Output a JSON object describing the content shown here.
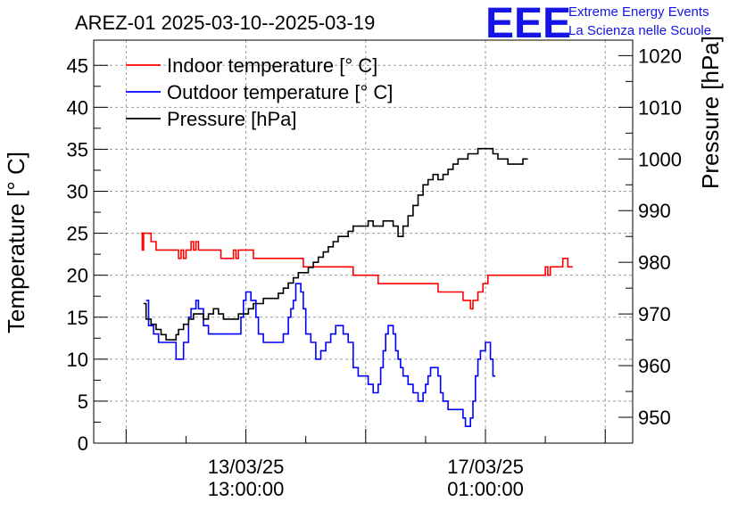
{
  "chart_data": {
    "type": "line",
    "title": "AREZ-01 2025-03-10--2025-03-19",
    "logo": "EEE",
    "organization": [
      "Extreme Energy Events",
      "La Scienza nelle Scuole"
    ],
    "ylabel": "Temperature [° C]",
    "ylabel_right": "Pressure [hPa]",
    "x_unit": "hours since 2025-03-10 00:00",
    "xlim": [
      0,
      216
    ],
    "ylim": [
      0,
      48
    ],
    "ylim_right": [
      945,
      1023
    ],
    "yticks": [
      0,
      5,
      10,
      15,
      20,
      25,
      30,
      35,
      40,
      45
    ],
    "yticks_right": [
      950,
      960,
      970,
      980,
      990,
      1000,
      1010,
      1020
    ],
    "xticks": [
      {
        "x": 61,
        "line1": "13/03/25",
        "line2": "13:00:00"
      },
      {
        "x": 157,
        "line1": "17/03/25",
        "line2": "01:00:00"
      }
    ],
    "grid": true,
    "legend_position": "top-left",
    "series": [
      {
        "name": "Indoor temperature [° C]",
        "axis": "left",
        "color": "#ff0000",
        "points": [
          [
            19,
            25
          ],
          [
            19.5,
            23
          ],
          [
            20,
            25
          ],
          [
            22,
            25
          ],
          [
            23,
            24
          ],
          [
            24,
            24
          ],
          [
            25,
            23
          ],
          [
            30,
            23
          ],
          [
            33,
            23
          ],
          [
            34,
            22
          ],
          [
            35,
            23
          ],
          [
            36,
            22
          ],
          [
            37,
            23
          ],
          [
            38,
            23
          ],
          [
            39,
            24
          ],
          [
            40,
            23
          ],
          [
            41,
            24
          ],
          [
            42,
            23
          ],
          [
            50,
            23
          ],
          [
            51,
            22
          ],
          [
            55,
            22
          ],
          [
            56,
            23
          ],
          [
            57,
            22
          ],
          [
            58,
            23
          ],
          [
            63,
            23
          ],
          [
            64,
            22
          ],
          [
            82,
            22
          ],
          [
            84,
            21
          ],
          [
            98,
            21
          ],
          [
            104,
            20
          ],
          [
            112,
            20
          ],
          [
            114,
            19
          ],
          [
            136,
            19
          ],
          [
            138,
            18
          ],
          [
            146,
            18
          ],
          [
            148,
            17
          ],
          [
            150,
            17
          ],
          [
            151,
            16
          ],
          [
            152,
            17
          ],
          [
            154,
            18
          ],
          [
            156,
            19
          ],
          [
            158,
            20
          ],
          [
            172,
            20
          ],
          [
            174,
            20
          ],
          [
            176,
            20
          ],
          [
            178,
            20
          ],
          [
            180,
            20
          ],
          [
            181,
            21
          ],
          [
            182,
            20
          ],
          [
            183,
            21
          ],
          [
            186,
            21
          ],
          [
            188,
            22
          ],
          [
            190,
            21
          ],
          [
            192,
            21
          ]
        ]
      },
      {
        "name": "Outdoor temperature [° C]",
        "axis": "left",
        "color": "#0000ff",
        "points": [
          [
            21,
            17
          ],
          [
            22,
            14
          ],
          [
            24,
            13
          ],
          [
            26,
            12
          ],
          [
            29,
            12
          ],
          [
            32,
            12
          ],
          [
            33,
            10
          ],
          [
            35,
            10
          ],
          [
            36,
            12
          ],
          [
            38,
            15
          ],
          [
            39,
            16
          ],
          [
            41,
            17
          ],
          [
            42,
            16
          ],
          [
            44,
            14
          ],
          [
            46,
            13
          ],
          [
            48,
            13
          ],
          [
            51,
            13
          ],
          [
            54,
            13
          ],
          [
            57,
            13
          ],
          [
            59,
            15
          ],
          [
            60,
            17
          ],
          [
            61,
            18
          ],
          [
            62,
            18
          ],
          [
            63,
            17
          ],
          [
            65,
            15
          ],
          [
            66,
            13
          ],
          [
            68,
            12
          ],
          [
            70,
            12
          ],
          [
            72,
            12
          ],
          [
            74,
            12
          ],
          [
            76,
            13
          ],
          [
            78,
            15
          ],
          [
            79,
            16
          ],
          [
            80,
            17
          ],
          [
            81,
            19
          ],
          [
            82,
            19
          ],
          [
            83,
            18
          ],
          [
            84,
            16
          ],
          [
            85,
            13
          ],
          [
            87,
            12
          ],
          [
            89,
            10
          ],
          [
            91,
            11
          ],
          [
            93,
            12
          ],
          [
            95,
            13
          ],
          [
            97,
            14
          ],
          [
            99,
            14
          ],
          [
            100,
            13
          ],
          [
            102,
            12
          ],
          [
            104,
            9
          ],
          [
            106,
            8
          ],
          [
            108,
            8
          ],
          [
            110,
            7
          ],
          [
            111,
            7
          ],
          [
            112,
            6
          ],
          [
            113,
            6
          ],
          [
            114,
            7
          ],
          [
            115,
            9
          ],
          [
            116,
            11
          ],
          [
            117,
            13
          ],
          [
            118,
            14
          ],
          [
            119,
            14
          ],
          [
            120,
            13
          ],
          [
            121,
            11
          ],
          [
            122,
            10
          ],
          [
            123,
            9
          ],
          [
            124,
            8
          ],
          [
            126,
            7
          ],
          [
            128,
            6
          ],
          [
            130,
            5
          ],
          [
            131,
            5
          ],
          [
            132,
            6
          ],
          [
            133,
            7
          ],
          [
            134,
            8
          ],
          [
            135,
            9
          ],
          [
            136,
            9
          ],
          [
            138,
            8
          ],
          [
            139,
            6
          ],
          [
            140,
            5
          ],
          [
            142,
            4
          ],
          [
            144,
            4
          ],
          [
            146,
            4
          ],
          [
            148,
            3
          ],
          [
            149,
            2
          ],
          [
            150,
            2
          ],
          [
            151,
            3
          ],
          [
            152,
            5
          ],
          [
            153,
            8
          ],
          [
            154,
            10
          ],
          [
            155,
            11
          ],
          [
            156,
            11
          ],
          [
            157,
            12
          ],
          [
            158,
            12
          ],
          [
            159,
            10
          ],
          [
            160,
            8
          ],
          [
            161,
            8
          ]
        ]
      },
      {
        "name": "Pressure [hPa]",
        "axis": "right",
        "color": "#000000",
        "points": [
          [
            20,
            972
          ],
          [
            21,
            969
          ],
          [
            23,
            968
          ],
          [
            25,
            967
          ],
          [
            27,
            966
          ],
          [
            29,
            965
          ],
          [
            31,
            965
          ],
          [
            33,
            966
          ],
          [
            34,
            967
          ],
          [
            36,
            968
          ],
          [
            38,
            969
          ],
          [
            40,
            970
          ],
          [
            42,
            970
          ],
          [
            44,
            969
          ],
          [
            46,
            970
          ],
          [
            48,
            971
          ],
          [
            50,
            970
          ],
          [
            52,
            969
          ],
          [
            54,
            969
          ],
          [
            56,
            969
          ],
          [
            58,
            970
          ],
          [
            60,
            970
          ],
          [
            62,
            971
          ],
          [
            64,
            972
          ],
          [
            66,
            972
          ],
          [
            68,
            973
          ],
          [
            70,
            973
          ],
          [
            72,
            973
          ],
          [
            74,
            974
          ],
          [
            76,
            975
          ],
          [
            78,
            976
          ],
          [
            80,
            977
          ],
          [
            82,
            978
          ],
          [
            84,
            978
          ],
          [
            86,
            979
          ],
          [
            88,
            980
          ],
          [
            90,
            981
          ],
          [
            92,
            982
          ],
          [
            94,
            983
          ],
          [
            96,
            984
          ],
          [
            98,
            985
          ],
          [
            100,
            985
          ],
          [
            102,
            986
          ],
          [
            104,
            987
          ],
          [
            106,
            987
          ],
          [
            108,
            987
          ],
          [
            110,
            988
          ],
          [
            112,
            987
          ],
          [
            114,
            987
          ],
          [
            116,
            988
          ],
          [
            118,
            988
          ],
          [
            120,
            987
          ],
          [
            122,
            985
          ],
          [
            124,
            987
          ],
          [
            126,
            989
          ],
          [
            128,
            991
          ],
          [
            130,
            993
          ],
          [
            132,
            995
          ],
          [
            134,
            996
          ],
          [
            136,
            997
          ],
          [
            138,
            996
          ],
          [
            140,
            997
          ],
          [
            142,
            998
          ],
          [
            144,
            999
          ],
          [
            146,
            1000
          ],
          [
            148,
            1000
          ],
          [
            150,
            1001
          ],
          [
            152,
            1001
          ],
          [
            154,
            1002
          ],
          [
            156,
            1002
          ],
          [
            158,
            1002
          ],
          [
            160,
            1001
          ],
          [
            162,
            1000
          ],
          [
            164,
            1000
          ],
          [
            166,
            999
          ],
          [
            168,
            999
          ],
          [
            170,
            999
          ],
          [
            172,
            1000
          ],
          [
            174,
            1000
          ]
        ]
      }
    ]
  }
}
